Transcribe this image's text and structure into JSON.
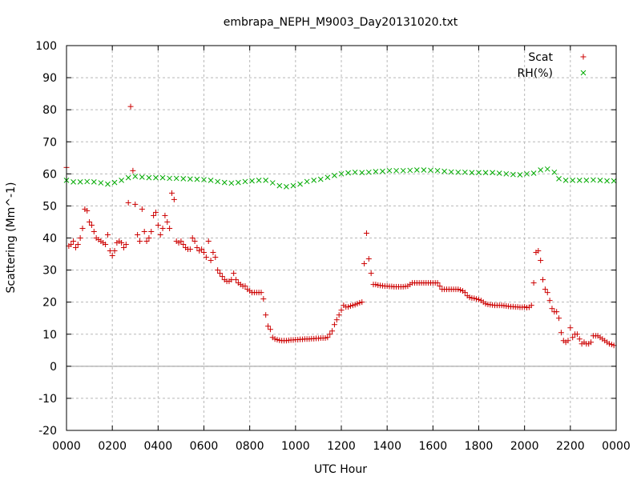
{
  "chart_data": {
    "type": "scatter",
    "title": "embrapa_NEPH_M9003_Day20131020.txt",
    "xlabel": "UTC Hour",
    "ylabel": "Scattering (Mm^-1)",
    "xlim": [
      0,
      24
    ],
    "ylim": [
      -20,
      100
    ],
    "x_tick_labels": [
      "0000",
      "0200",
      "0400",
      "0600",
      "0800",
      "1000",
      "1200",
      "1400",
      "1600",
      "1800",
      "2000",
      "2200",
      "0000"
    ],
    "y_ticks": [
      -20,
      -10,
      0,
      10,
      20,
      30,
      40,
      50,
      60,
      70,
      80,
      90,
      100
    ],
    "grid": true,
    "legend_position": "top-right",
    "series": [
      {
        "name": "Scat",
        "marker": "+",
        "color": "#cc0000",
        "points": [
          [
            0.0,
            62
          ],
          [
            0.1,
            37.5
          ],
          [
            0.2,
            38
          ],
          [
            0.3,
            39
          ],
          [
            0.4,
            37
          ],
          [
            0.5,
            38
          ],
          [
            0.6,
            40
          ],
          [
            0.7,
            43
          ],
          [
            0.8,
            49
          ],
          [
            0.9,
            48.5
          ],
          [
            1.0,
            45
          ],
          [
            1.1,
            44
          ],
          [
            1.2,
            42
          ],
          [
            1.3,
            40
          ],
          [
            1.4,
            39.5
          ],
          [
            1.5,
            39
          ],
          [
            1.6,
            38.5
          ],
          [
            1.7,
            38
          ],
          [
            1.8,
            41
          ],
          [
            1.9,
            36
          ],
          [
            2.0,
            34.5
          ],
          [
            2.1,
            36
          ],
          [
            2.2,
            38.5
          ],
          [
            2.3,
            39
          ],
          [
            2.4,
            38.5
          ],
          [
            2.5,
            37
          ],
          [
            2.6,
            38
          ],
          [
            2.7,
            51
          ],
          [
            2.8,
            81
          ],
          [
            2.9,
            61
          ],
          [
            3.0,
            50.5
          ],
          [
            3.1,
            41
          ],
          [
            3.2,
            39
          ],
          [
            3.3,
            49
          ],
          [
            3.4,
            42
          ],
          [
            3.5,
            39
          ],
          [
            3.6,
            40
          ],
          [
            3.7,
            42
          ],
          [
            3.8,
            47
          ],
          [
            3.9,
            48
          ],
          [
            4.0,
            44
          ],
          [
            4.1,
            41
          ],
          [
            4.2,
            43
          ],
          [
            4.3,
            47
          ],
          [
            4.4,
            45
          ],
          [
            4.5,
            43
          ],
          [
            4.6,
            54
          ],
          [
            4.7,
            52
          ],
          [
            4.8,
            39
          ],
          [
            4.9,
            38.5
          ],
          [
            5.0,
            39
          ],
          [
            5.1,
            38
          ],
          [
            5.2,
            37
          ],
          [
            5.3,
            36.5
          ],
          [
            5.4,
            36.5
          ],
          [
            5.5,
            40
          ],
          [
            5.6,
            39
          ],
          [
            5.7,
            37
          ],
          [
            5.8,
            36
          ],
          [
            5.9,
            36.5
          ],
          [
            6.0,
            35.5
          ],
          [
            6.1,
            34
          ],
          [
            6.2,
            39
          ],
          [
            6.3,
            33
          ],
          [
            6.4,
            35.5
          ],
          [
            6.5,
            34
          ],
          [
            6.6,
            30
          ],
          [
            6.7,
            29
          ],
          [
            6.8,
            28
          ],
          [
            6.9,
            27
          ],
          [
            7.0,
            26.5
          ],
          [
            7.1,
            26.5
          ],
          [
            7.2,
            27
          ],
          [
            7.3,
            29
          ],
          [
            7.4,
            27
          ],
          [
            7.5,
            26
          ],
          [
            7.6,
            25.5
          ],
          [
            7.7,
            25
          ],
          [
            7.8,
            25
          ],
          [
            7.9,
            24
          ],
          [
            8.0,
            23.5
          ],
          [
            8.1,
            23
          ],
          [
            8.2,
            23
          ],
          [
            8.3,
            23
          ],
          [
            8.4,
            23
          ],
          [
            8.5,
            23
          ],
          [
            8.6,
            21
          ],
          [
            8.7,
            16
          ],
          [
            8.8,
            12.5
          ],
          [
            8.9,
            11.5
          ],
          [
            9.0,
            9
          ],
          [
            9.1,
            8.5
          ],
          [
            9.2,
            8.3
          ],
          [
            9.3,
            8.1
          ],
          [
            9.4,
            8
          ],
          [
            9.5,
            8
          ],
          [
            9.6,
            8
          ],
          [
            9.7,
            8.1
          ],
          [
            9.8,
            8.2
          ],
          [
            9.9,
            8.2
          ],
          [
            10.0,
            8.3
          ],
          [
            10.1,
            8.3
          ],
          [
            10.2,
            8.4
          ],
          [
            10.3,
            8.4
          ],
          [
            10.4,
            8.5
          ],
          [
            10.5,
            8.5
          ],
          [
            10.6,
            8.5
          ],
          [
            10.7,
            8.6
          ],
          [
            10.8,
            8.6
          ],
          [
            10.9,
            8.7
          ],
          [
            11.0,
            8.7
          ],
          [
            11.1,
            8.8
          ],
          [
            11.2,
            8.8
          ],
          [
            11.3,
            8.8
          ],
          [
            11.4,
            9
          ],
          [
            11.5,
            10
          ],
          [
            11.6,
            11
          ],
          [
            11.7,
            13
          ],
          [
            11.8,
            14.5
          ],
          [
            11.9,
            16
          ],
          [
            12.0,
            17.5
          ],
          [
            12.1,
            19
          ],
          [
            12.2,
            18.5
          ],
          [
            12.3,
            18.5
          ],
          [
            12.4,
            18.8
          ],
          [
            12.5,
            19
          ],
          [
            12.6,
            19.2
          ],
          [
            12.7,
            19.5
          ],
          [
            12.8,
            19.8
          ],
          [
            12.9,
            20
          ],
          [
            13.0,
            32
          ],
          [
            13.1,
            41.5
          ],
          [
            13.2,
            33.5
          ],
          [
            13.3,
            29
          ],
          [
            13.4,
            25.5
          ],
          [
            13.5,
            25.5
          ],
          [
            13.6,
            25.3
          ],
          [
            13.7,
            25.2
          ],
          [
            13.8,
            25.1
          ],
          [
            13.9,
            25
          ],
          [
            14.0,
            25
          ],
          [
            14.1,
            24.9
          ],
          [
            14.2,
            24.9
          ],
          [
            14.3,
            24.8
          ],
          [
            14.4,
            24.8
          ],
          [
            14.5,
            24.8
          ],
          [
            14.6,
            24.8
          ],
          [
            14.7,
            24.8
          ],
          [
            14.8,
            24.9
          ],
          [
            14.9,
            25
          ],
          [
            15.0,
            25.5
          ],
          [
            15.1,
            26
          ],
          [
            15.2,
            26
          ],
          [
            15.3,
            26
          ],
          [
            15.4,
            26
          ],
          [
            15.5,
            26
          ],
          [
            15.6,
            26
          ],
          [
            15.7,
            26
          ],
          [
            15.8,
            26
          ],
          [
            15.9,
            26
          ],
          [
            16.0,
            26
          ],
          [
            16.1,
            26
          ],
          [
            16.2,
            26
          ],
          [
            16.3,
            25
          ],
          [
            16.4,
            24
          ],
          [
            16.5,
            24
          ],
          [
            16.6,
            24
          ],
          [
            16.7,
            24
          ],
          [
            16.8,
            24
          ],
          [
            16.9,
            24
          ],
          [
            17.0,
            24
          ],
          [
            17.1,
            24
          ],
          [
            17.2,
            23.8
          ],
          [
            17.3,
            23.5
          ],
          [
            17.4,
            23
          ],
          [
            17.5,
            22
          ],
          [
            17.6,
            21.5
          ],
          [
            17.7,
            21.3
          ],
          [
            17.8,
            21.2
          ],
          [
            17.9,
            21
          ],
          [
            18.0,
            20.8
          ],
          [
            18.1,
            20.5
          ],
          [
            18.2,
            20
          ],
          [
            18.3,
            19.5
          ],
          [
            18.4,
            19.3
          ],
          [
            18.5,
            19.2
          ],
          [
            18.6,
            19.1
          ],
          [
            18.7,
            19
          ],
          [
            18.8,
            19
          ],
          [
            18.9,
            19
          ],
          [
            19.0,
            19
          ],
          [
            19.1,
            18.9
          ],
          [
            19.2,
            18.8
          ],
          [
            19.3,
            18.7
          ],
          [
            19.4,
            18.6
          ],
          [
            19.5,
            18.6
          ],
          [
            19.6,
            18.5
          ],
          [
            19.7,
            18.5
          ],
          [
            19.8,
            18.4
          ],
          [
            19.9,
            18.4
          ],
          [
            20.0,
            18.5
          ],
          [
            20.1,
            18.3
          ],
          [
            20.2,
            18.4
          ],
          [
            20.3,
            19
          ],
          [
            20.4,
            26
          ],
          [
            20.5,
            35.5
          ],
          [
            20.6,
            36
          ],
          [
            20.7,
            33
          ],
          [
            20.8,
            27
          ],
          [
            20.9,
            24
          ],
          [
            21.0,
            23
          ],
          [
            21.1,
            20.5
          ],
          [
            21.2,
            18
          ],
          [
            21.3,
            17
          ],
          [
            21.4,
            17
          ],
          [
            21.5,
            15
          ],
          [
            21.6,
            10.5
          ],
          [
            21.7,
            8
          ],
          [
            21.8,
            7.5
          ],
          [
            21.9,
            8
          ],
          [
            22.0,
            12
          ],
          [
            22.1,
            9
          ],
          [
            22.2,
            10
          ],
          [
            22.3,
            10
          ],
          [
            22.4,
            8.5
          ],
          [
            22.5,
            7
          ],
          [
            22.6,
            7.5
          ],
          [
            22.7,
            7
          ],
          [
            22.8,
            7
          ],
          [
            22.9,
            7.5
          ],
          [
            23.0,
            9.5
          ],
          [
            23.1,
            9.5
          ],
          [
            23.2,
            9.5
          ],
          [
            23.3,
            9
          ],
          [
            23.4,
            8.5
          ],
          [
            23.5,
            8
          ],
          [
            23.6,
            7.5
          ],
          [
            23.7,
            7
          ],
          [
            23.8,
            6.8
          ],
          [
            23.9,
            6.5
          ]
        ]
      },
      {
        "name": "RH(%)",
        "marker": "x",
        "color": "#00aa00",
        "points": [
          [
            0.0,
            58
          ],
          [
            0.3,
            57.5
          ],
          [
            0.6,
            57.5
          ],
          [
            0.9,
            57.6
          ],
          [
            1.2,
            57.5
          ],
          [
            1.5,
            57.2
          ],
          [
            1.8,
            56.8
          ],
          [
            2.1,
            57.3
          ],
          [
            2.4,
            58
          ],
          [
            2.7,
            58.8
          ],
          [
            3.0,
            59.2
          ],
          [
            3.3,
            59
          ],
          [
            3.6,
            58.8
          ],
          [
            3.9,
            58.8
          ],
          [
            4.2,
            58.8
          ],
          [
            4.5,
            58.6
          ],
          [
            4.8,
            58.6
          ],
          [
            5.1,
            58.5
          ],
          [
            5.4,
            58.4
          ],
          [
            5.7,
            58.3
          ],
          [
            6.0,
            58.2
          ],
          [
            6.3,
            58
          ],
          [
            6.6,
            57.6
          ],
          [
            6.9,
            57.3
          ],
          [
            7.2,
            57.1
          ],
          [
            7.5,
            57.3
          ],
          [
            7.8,
            57.6
          ],
          [
            8.1,
            57.8
          ],
          [
            8.4,
            58
          ],
          [
            8.7,
            58
          ],
          [
            9.0,
            57.2
          ],
          [
            9.3,
            56.3
          ],
          [
            9.6,
            56
          ],
          [
            9.9,
            56.3
          ],
          [
            10.2,
            56.8
          ],
          [
            10.5,
            57.6
          ],
          [
            10.8,
            58
          ],
          [
            11.1,
            58.3
          ],
          [
            11.4,
            58.9
          ],
          [
            11.7,
            59.5
          ],
          [
            12.0,
            60
          ],
          [
            12.3,
            60.3
          ],
          [
            12.6,
            60.5
          ],
          [
            12.9,
            60.4
          ],
          [
            13.2,
            60.5
          ],
          [
            13.5,
            60.7
          ],
          [
            13.8,
            60.8
          ],
          [
            14.1,
            61
          ],
          [
            14.4,
            61
          ],
          [
            14.7,
            61
          ],
          [
            15.0,
            61.1
          ],
          [
            15.3,
            61.2
          ],
          [
            15.6,
            61.2
          ],
          [
            15.9,
            61.1
          ],
          [
            16.2,
            61
          ],
          [
            16.5,
            60.8
          ],
          [
            16.8,
            60.6
          ],
          [
            17.1,
            60.5
          ],
          [
            17.4,
            60.5
          ],
          [
            17.7,
            60.4
          ],
          [
            18.0,
            60.4
          ],
          [
            18.3,
            60.4
          ],
          [
            18.6,
            60.4
          ],
          [
            18.9,
            60.2
          ],
          [
            19.2,
            60
          ],
          [
            19.5,
            59.8
          ],
          [
            19.8,
            59.7
          ],
          [
            20.1,
            60
          ],
          [
            20.4,
            60.2
          ],
          [
            20.7,
            61.2
          ],
          [
            21.0,
            61.5
          ],
          [
            21.3,
            60.5
          ],
          [
            21.5,
            58.5
          ],
          [
            21.8,
            58
          ],
          [
            22.1,
            58
          ],
          [
            22.4,
            58
          ],
          [
            22.7,
            58
          ],
          [
            23.0,
            58.1
          ],
          [
            23.3,
            58
          ],
          [
            23.6,
            57.8
          ],
          [
            23.9,
            57.8
          ]
        ]
      }
    ]
  }
}
